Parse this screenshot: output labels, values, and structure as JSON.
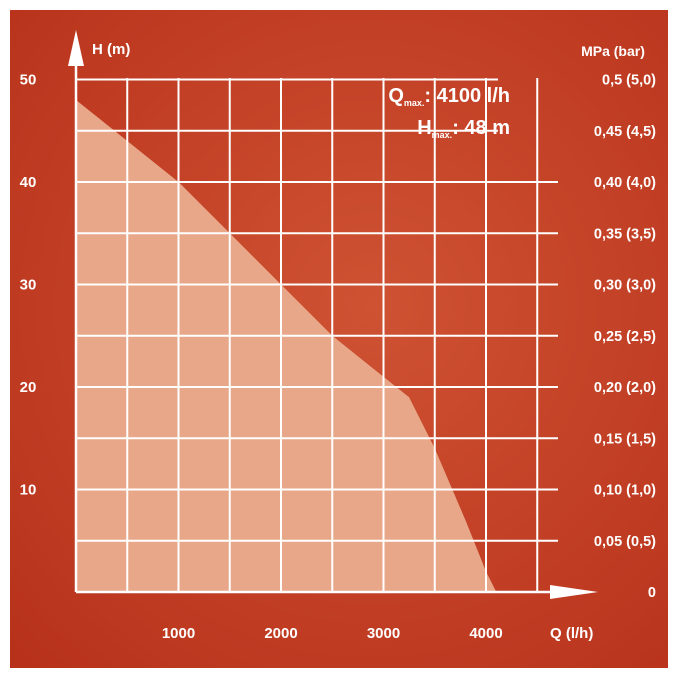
{
  "chart_data": {
    "type": "area",
    "title": "",
    "ylabel": "H (m)",
    "xlabel": "Q (l/h)",
    "y2label": "MPa (bar)",
    "xlim": [
      0,
      5000
    ],
    "ylim": [
      0,
      50
    ],
    "x_ticks": [
      "1000",
      "2000",
      "3000",
      "4000"
    ],
    "y_ticks": [
      "10",
      "20",
      "30",
      "40",
      "50"
    ],
    "y2_ticks": [
      "0",
      "0,05 (0,5)",
      "0,10 (1,0)",
      "0,15 (1,5)",
      "0,20 (2,0)",
      "0,25 (2,5)",
      "0,30 (3,0)",
      "0,35 (3,5)",
      "0,40 (4,0)",
      "0,45 (4,5)",
      "0,5 (5,0)"
    ],
    "grid": true,
    "series": [
      {
        "x": [
          0,
          500,
          1000,
          1500,
          2000,
          2500,
          3000,
          3250,
          3500,
          3800,
          4000,
          4100
        ],
        "y": [
          48,
          44,
          40,
          35,
          30,
          25,
          21,
          19,
          14,
          7,
          2,
          0
        ]
      }
    ],
    "annotations": {
      "q_max": {
        "symbol": "Q",
        "subscript": "max.",
        "value": ": 4100 l/h"
      },
      "h_max": {
        "symbol": "H",
        "subscript": "max.",
        "value": ": 48 m"
      }
    },
    "colors": {
      "background": "#b8321b",
      "background_light": "#cf5233",
      "area_fill": "#e8a789",
      "grid": "#ffffff",
      "text": "#ffffff"
    }
  }
}
